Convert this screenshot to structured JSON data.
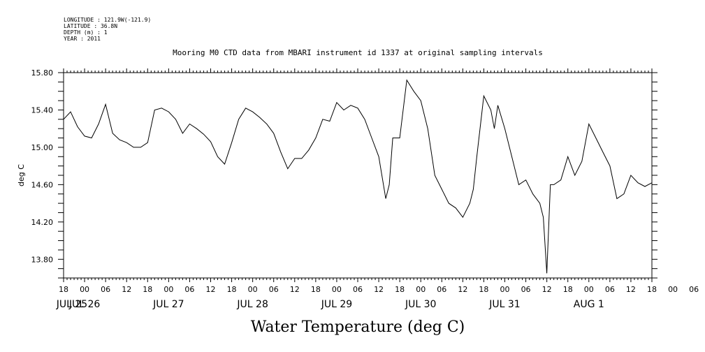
{
  "header": {
    "lines": [
      "LONGITUDE : 121.9W(-121.9)",
      "LATITUDE : 36.8N",
      "DEPTH (m) : 1",
      "YEAR : 2011"
    ],
    "title": "Mooring M0 CTD data from MBARI instrument id 1337 at original sampling intervals"
  },
  "chart_data": {
    "type": "line",
    "title": "Mooring M0 CTD data from MBARI instrument id 1337 at original sampling intervals",
    "xlabel": "Water Temperature (deg C)",
    "ylabel": "deg C",
    "ylim": [
      13.6,
      15.8
    ],
    "y_ticks": [
      "15.80",
      "15.40",
      "15.00",
      "14.60",
      "14.20",
      "13.80"
    ],
    "x_hour_ticks": [
      "18",
      "00",
      "06",
      "12",
      "18",
      "00",
      "06",
      "12",
      "18",
      "00",
      "06",
      "12",
      "18",
      "00",
      "06",
      "12",
      "18",
      "00",
      "06",
      "12",
      "18",
      "00",
      "06",
      "12",
      "18",
      "00",
      "06",
      "12",
      "18",
      "00",
      "06",
      "12",
      "18"
    ],
    "x_date_labels": [
      "JUL 25",
      "JUL 26",
      "JUL 27",
      "JUL 28",
      "JUL 29",
      "JUL 30",
      "JUL 31",
      "AUG  1"
    ],
    "x_start": "2011-07-25 18:00",
    "x_end": "2011-08-01 18:00",
    "grid": false,
    "series": [
      {
        "color": "#000000",
        "x": [
          "07-25 18:00",
          "07-25 20:00",
          "07-25 22:00",
          "07-26 00:00",
          "07-26 02:00",
          "07-26 04:00",
          "07-26 06:00",
          "07-26 08:00",
          "07-26 10:00",
          "07-26 12:00",
          "07-26 14:00",
          "07-26 16:00",
          "07-26 18:00",
          "07-26 20:00",
          "07-26 22:00",
          "07-27 00:00",
          "07-27 02:00",
          "07-27 04:00",
          "07-27 06:00",
          "07-27 08:00",
          "07-27 10:00",
          "07-27 12:00",
          "07-27 14:00",
          "07-27 16:00",
          "07-27 18:00",
          "07-27 20:00",
          "07-27 22:00",
          "07-28 00:00",
          "07-28 02:00",
          "07-28 04:00",
          "07-28 06:00",
          "07-28 08:00",
          "07-28 10:00",
          "07-28 12:00",
          "07-28 14:00",
          "07-28 16:00",
          "07-28 18:00",
          "07-28 20:00",
          "07-28 22:00",
          "07-29 00:00",
          "07-29 02:00",
          "07-29 04:00",
          "07-29 06:00",
          "07-29 08:00",
          "07-29 10:00",
          "07-29 12:00",
          "07-29 14:00",
          "07-29 15:00",
          "07-29 16:00",
          "07-29 18:00",
          "07-29 20:00",
          "07-29 22:00",
          "07-30 00:00",
          "07-30 02:00",
          "07-30 04:00",
          "07-30 06:00",
          "07-30 08:00",
          "07-30 10:00",
          "07-30 12:00",
          "07-30 14:00",
          "07-30 15:00",
          "07-30 16:00",
          "07-30 18:00",
          "07-30 20:00",
          "07-30 21:00",
          "07-30 22:00",
          "07-31 00:00",
          "07-31 02:00",
          "07-31 04:00",
          "07-31 06:00",
          "07-31 08:00",
          "07-31 10:00",
          "07-31 11:00",
          "07-31 12:00",
          "07-31 13:00",
          "07-31 14:00",
          "07-31 16:00",
          "07-31 18:00",
          "07-31 20:00",
          "07-31 22:00",
          "08-01 00:00",
          "08-01 02:00",
          "08-01 04:00",
          "08-01 06:00",
          "08-01 08:00",
          "08-01 10:00",
          "08-01 12:00",
          "08-01 14:00",
          "08-01 16:00",
          "08-01 18:00"
        ],
        "y": [
          15.3,
          15.38,
          15.22,
          15.12,
          15.1,
          15.25,
          15.46,
          15.15,
          15.08,
          15.05,
          15.0,
          15.0,
          15.05,
          15.4,
          15.42,
          15.38,
          15.3,
          15.15,
          15.25,
          15.2,
          15.14,
          15.06,
          14.9,
          14.82,
          15.05,
          15.3,
          15.42,
          15.38,
          15.32,
          15.25,
          15.15,
          14.95,
          14.77,
          14.88,
          14.88,
          14.97,
          15.1,
          15.3,
          15.28,
          15.48,
          15.4,
          15.45,
          15.42,
          15.3,
          15.1,
          14.9,
          14.45,
          14.6,
          15.1,
          15.1,
          15.72,
          15.6,
          15.5,
          15.2,
          14.7,
          14.55,
          14.4,
          14.35,
          14.25,
          14.4,
          14.55,
          14.9,
          15.55,
          15.4,
          15.2,
          15.45,
          15.2,
          14.9,
          14.6,
          14.65,
          14.5,
          14.4,
          14.25,
          13.65,
          14.6,
          14.6,
          14.65,
          14.9,
          14.7,
          14.85,
          15.25,
          15.1,
          14.95,
          14.8,
          14.45,
          14.5,
          14.7,
          14.62,
          14.58,
          14.62
        ]
      }
    ]
  }
}
